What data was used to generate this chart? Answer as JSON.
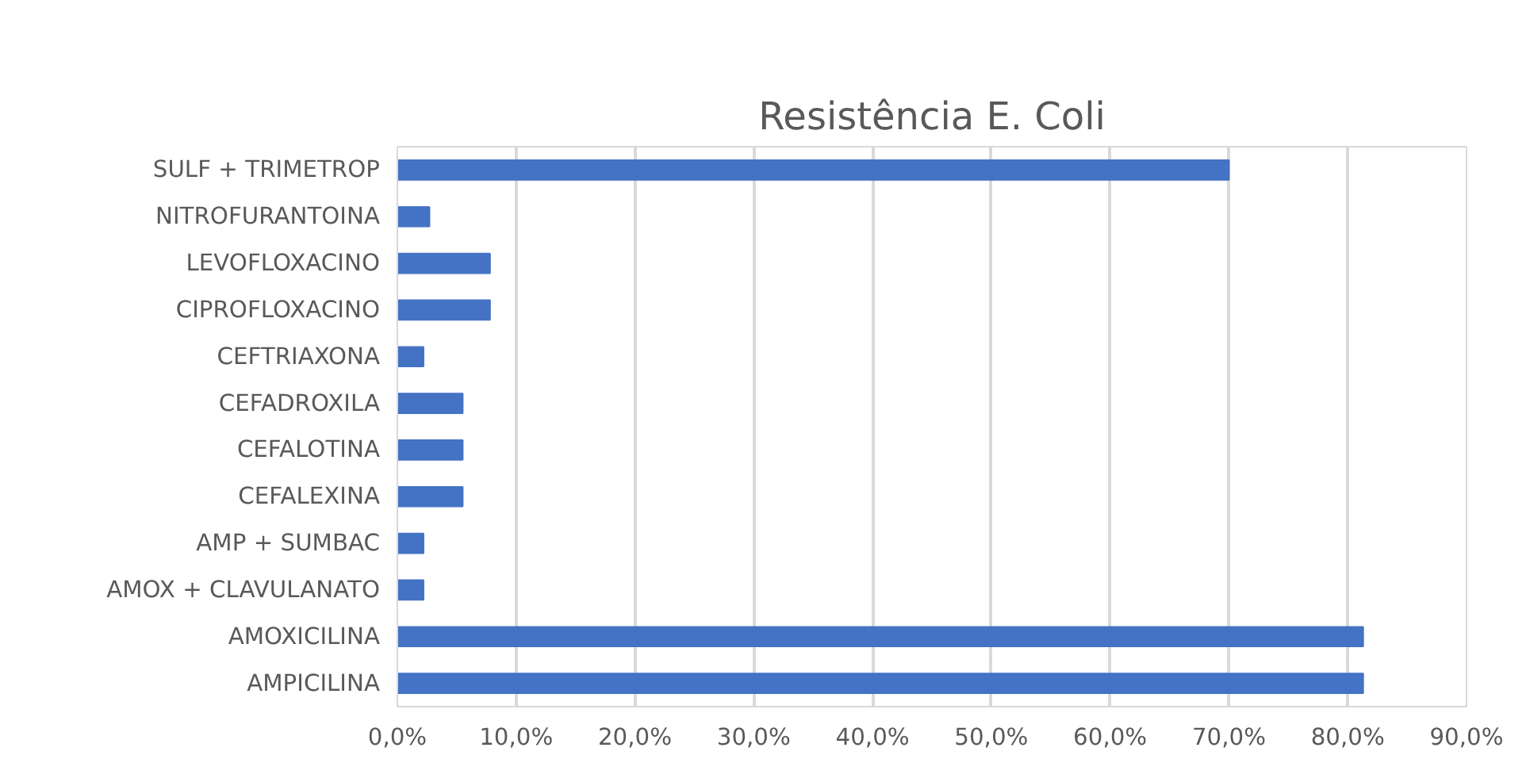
{
  "chart_data": {
    "type": "bar",
    "orientation": "horizontal",
    "title": "Resistência E. Coli",
    "categories": [
      "SULF + TRIMETROP",
      "NITROFURANTOINA",
      "LEVOFLOXACINO",
      "CIPROFLOXACINO",
      "CEFTRIAXONA",
      "CEFADROXILA",
      "CEFALOTINA",
      "CEFALEXINA",
      "AMP + SUMBAC",
      "AMOX + CLAVULANATO",
      "AMOXICILINA",
      "AMPICILINA"
    ],
    "values": [
      70.0,
      2.7,
      7.8,
      7.8,
      2.2,
      5.5,
      5.5,
      5.5,
      2.2,
      2.2,
      81.3,
      81.3
    ],
    "color": "#4472c4",
    "xlim": [
      0,
      90
    ],
    "xticks": [
      {
        "value": 0,
        "label": "0,0%"
      },
      {
        "value": 10,
        "label": "10,0%"
      },
      {
        "value": 20,
        "label": "20,0%"
      },
      {
        "value": 30,
        "label": "30,0%"
      },
      {
        "value": 40,
        "label": "40,0%"
      },
      {
        "value": 50,
        "label": "50,0%"
      },
      {
        "value": 60,
        "label": "60,0%"
      },
      {
        "value": 70,
        "label": "70,0%"
      },
      {
        "value": 80,
        "label": "80,0%"
      },
      {
        "value": 90,
        "label": "90,0%"
      }
    ],
    "grid": "x"
  }
}
